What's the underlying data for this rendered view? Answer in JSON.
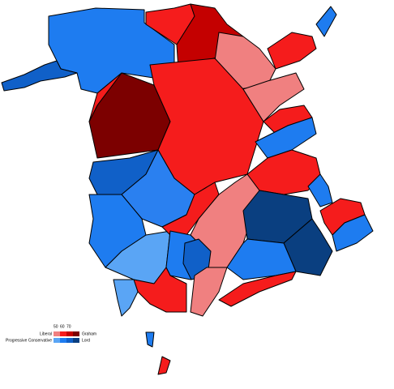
{
  "legend": {
    "scale": [
      50,
      60,
      70
    ],
    "rows": [
      {
        "party": "Liberal",
        "leader": "Graham"
      },
      {
        "party": "Progressive Conservative",
        "leader": "Lord"
      }
    ]
  }
}
